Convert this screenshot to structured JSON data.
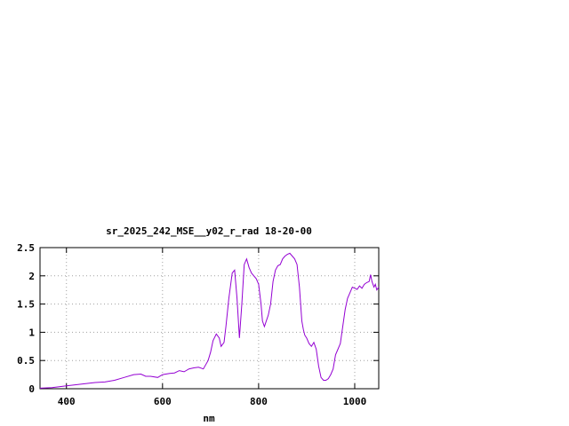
{
  "chart_data": {
    "type": "line",
    "title": "sr_2025_242_MSE__y02_r_rad 18-20-00",
    "xlabel": "nm",
    "ylabel": "",
    "xlim": [
      345,
      1050
    ],
    "ylim": [
      0,
      2.5
    ],
    "x_ticks": [
      400,
      600,
      800,
      1000
    ],
    "x_tick_labels": [
      "400",
      "600",
      "800",
      "1000"
    ],
    "y_ticks": [
      0,
      0.5,
      1,
      1.5,
      2,
      2.5
    ],
    "y_tick_labels": [
      "0",
      "0.5",
      "1",
      "1.5",
      "2",
      "2.5"
    ],
    "grid": true,
    "legend": "none",
    "series": [
      {
        "color": "#9400d3",
        "x": [
          345,
          370,
          400,
          420,
          440,
          460,
          480,
          500,
          520,
          540,
          555,
          565,
          575,
          590,
          600,
          615,
          625,
          635,
          645,
          655,
          665,
          675,
          685,
          695,
          700,
          705,
          712,
          718,
          722,
          728,
          732,
          738,
          745,
          750,
          755,
          760,
          765,
          770,
          775,
          780,
          785,
          790,
          795,
          800,
          805,
          808,
          812,
          816,
          820,
          825,
          830,
          835,
          840,
          845,
          850,
          855,
          860,
          865,
          870,
          875,
          880,
          885,
          890,
          893,
          896,
          900,
          905,
          910,
          915,
          920,
          925,
          930,
          935,
          940,
          945,
          950,
          955,
          960,
          965,
          970,
          975,
          980,
          985,
          990,
          995,
          1000,
          1005,
          1010,
          1015,
          1020,
          1025,
          1030,
          1033,
          1036,
          1040,
          1043,
          1046,
          1050
        ],
        "y": [
          0.01,
          0.02,
          0.05,
          0.07,
          0.09,
          0.11,
          0.12,
          0.15,
          0.2,
          0.25,
          0.26,
          0.22,
          0.22,
          0.2,
          0.25,
          0.27,
          0.28,
          0.32,
          0.3,
          0.35,
          0.37,
          0.38,
          0.35,
          0.5,
          0.65,
          0.85,
          0.97,
          0.9,
          0.75,
          0.82,
          1.1,
          1.6,
          2.05,
          2.1,
          1.6,
          0.9,
          1.5,
          2.2,
          2.3,
          2.15,
          2.05,
          2.0,
          1.95,
          1.85,
          1.5,
          1.2,
          1.1,
          1.2,
          1.3,
          1.5,
          1.9,
          2.1,
          2.18,
          2.2,
          2.3,
          2.35,
          2.38,
          2.4,
          2.35,
          2.3,
          2.2,
          1.8,
          1.2,
          1.05,
          0.95,
          0.9,
          0.8,
          0.75,
          0.82,
          0.7,
          0.4,
          0.2,
          0.15,
          0.15,
          0.18,
          0.25,
          0.35,
          0.6,
          0.7,
          0.8,
          1.1,
          1.4,
          1.6,
          1.7,
          1.8,
          1.78,
          1.76,
          1.82,
          1.78,
          1.85,
          1.88,
          1.9,
          2.02,
          1.9,
          1.8,
          1.85,
          1.75,
          1.8
        ]
      }
    ]
  }
}
